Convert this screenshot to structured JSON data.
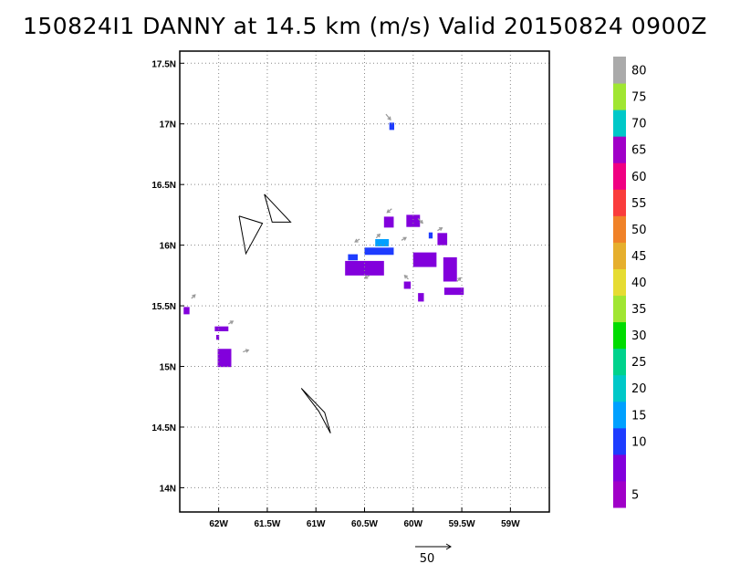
{
  "chart_data": {
    "type": "heatmap",
    "title": "150824I1 DANNY at 14.5 km (m/s) Valid 20150824 0900Z",
    "xlabel": "",
    "ylabel": "",
    "xlim": [
      -62.4,
      -58.6
    ],
    "ylim": [
      13.8,
      17.6
    ],
    "x_ticks": [
      {
        "value": -62.0,
        "label": "62W"
      },
      {
        "value": -61.5,
        "label": "61.5W"
      },
      {
        "value": -61.0,
        "label": "61W"
      },
      {
        "value": -60.5,
        "label": "60.5W"
      },
      {
        "value": -60.0,
        "label": "60W"
      },
      {
        "value": -59.5,
        "label": "59.5W"
      },
      {
        "value": -59.0,
        "label": "59W"
      }
    ],
    "y_ticks": [
      {
        "value": 14.0,
        "label": "14N"
      },
      {
        "value": 14.5,
        "label": "14.5N"
      },
      {
        "value": 15.0,
        "label": "15N"
      },
      {
        "value": 15.5,
        "label": "15.5N"
      },
      {
        "value": 16.0,
        "label": "16N"
      },
      {
        "value": 16.5,
        "label": "16.5N"
      },
      {
        "value": 17.0,
        "label": "17N"
      },
      {
        "value": 17.5,
        "label": "17.5N"
      }
    ],
    "grid": true,
    "colorbar": {
      "placement": "right",
      "levels": [
        {
          "label": "5",
          "color": "#a000c8"
        },
        {
          "label": "",
          "color": "#8200dc"
        },
        {
          "label": "10",
          "color": "#1e3cff"
        },
        {
          "label": "15",
          "color": "#00a0ff"
        },
        {
          "label": "20",
          "color": "#00c8c8"
        },
        {
          "label": "25",
          "color": "#00d28c"
        },
        {
          "label": "30",
          "color": "#00dc00"
        },
        {
          "label": "35",
          "color": "#a0e632"
        },
        {
          "label": "40",
          "color": "#e6dc32"
        },
        {
          "label": "45",
          "color": "#e6af2d"
        },
        {
          "label": "50",
          "color": "#f08228"
        },
        {
          "label": "55",
          "color": "#fa3c3c"
        },
        {
          "label": "60",
          "color": "#f00082"
        },
        {
          "label": "65",
          "color": "#a000c8"
        },
        {
          "label": "70",
          "color": "#00c8c8"
        },
        {
          "label": "75",
          "color": "#a0e632"
        },
        {
          "label": "80",
          "color": "#aaaaaa"
        }
      ]
    },
    "reference_vector": {
      "value": "50"
    },
    "coastlines": [
      [
        [
          -61.53,
          16.42
        ],
        [
          -61.26,
          16.19
        ],
        [
          -61.45,
          16.19
        ],
        [
          -61.53,
          16.42
        ]
      ],
      [
        [
          -61.79,
          16.24
        ],
        [
          -61.55,
          16.18
        ],
        [
          -61.72,
          15.93
        ],
        [
          -61.79,
          16.24
        ]
      ],
      [
        [
          -61.15,
          14.82
        ],
        [
          -60.97,
          14.63
        ],
        [
          -60.85,
          14.45
        ],
        [
          -60.91,
          14.62
        ],
        [
          -61.15,
          14.82
        ]
      ]
    ],
    "cells": [
      {
        "lon": -60.22,
        "lat": 16.98,
        "w": 0.05,
        "h": 0.06,
        "value": 10
      },
      {
        "lon": -62.33,
        "lat": 15.46,
        "w": 0.06,
        "h": 0.06,
        "value": 7
      },
      {
        "lon": -61.97,
        "lat": 15.31,
        "w": 0.14,
        "h": 0.04,
        "value": 8
      },
      {
        "lon": -62.01,
        "lat": 15.24,
        "w": 0.03,
        "h": 0.04,
        "value": 6
      },
      {
        "lon": -61.94,
        "lat": 15.07,
        "w": 0.14,
        "h": 0.15,
        "value": 7
      },
      {
        "lon": -60.25,
        "lat": 16.19,
        "w": 0.1,
        "h": 0.09,
        "value": 7
      },
      {
        "lon": -60.0,
        "lat": 16.2,
        "w": 0.14,
        "h": 0.1,
        "value": 7
      },
      {
        "lon": -60.5,
        "lat": 15.81,
        "w": 0.4,
        "h": 0.12,
        "value": 7
      },
      {
        "lon": -60.35,
        "lat": 15.95,
        "w": 0.3,
        "h": 0.06,
        "value": 11
      },
      {
        "lon": -60.32,
        "lat": 16.02,
        "w": 0.14,
        "h": 0.06,
        "value": 15
      },
      {
        "lon": -60.62,
        "lat": 15.9,
        "w": 0.1,
        "h": 0.05,
        "value": 10
      },
      {
        "lon": -59.88,
        "lat": 15.88,
        "w": 0.24,
        "h": 0.12,
        "value": 7
      },
      {
        "lon": -59.7,
        "lat": 16.05,
        "w": 0.1,
        "h": 0.1,
        "value": 7
      },
      {
        "lon": -59.62,
        "lat": 15.8,
        "w": 0.14,
        "h": 0.2,
        "value": 7
      },
      {
        "lon": -59.58,
        "lat": 15.62,
        "w": 0.2,
        "h": 0.06,
        "value": 7
      },
      {
        "lon": -59.92,
        "lat": 15.57,
        "w": 0.06,
        "h": 0.07,
        "value": 7
      },
      {
        "lon": -60.06,
        "lat": 15.67,
        "w": 0.07,
        "h": 0.06,
        "value": 7
      },
      {
        "lon": -59.82,
        "lat": 16.08,
        "w": 0.04,
        "h": 0.05,
        "value": 11
      }
    ],
    "vectors": [
      {
        "lon": -60.28,
        "lat": 17.08,
        "u": 5,
        "v": -6
      },
      {
        "lon": -62.28,
        "lat": 15.56,
        "u": 4,
        "v": 4
      },
      {
        "lon": -61.9,
        "lat": 15.35,
        "u": 5,
        "v": 3
      },
      {
        "lon": -61.75,
        "lat": 15.12,
        "u": 6,
        "v": 2
      },
      {
        "lon": -60.22,
        "lat": 16.3,
        "u": -5,
        "v": -4
      },
      {
        "lon": -59.95,
        "lat": 16.22,
        "u": 5,
        "v": -5
      },
      {
        "lon": -60.55,
        "lat": 16.05,
        "u": -5,
        "v": -3
      },
      {
        "lon": -60.38,
        "lat": 16.06,
        "u": 4,
        "v": 4
      },
      {
        "lon": -60.12,
        "lat": 16.04,
        "u": 5,
        "v": 3
      },
      {
        "lon": -60.45,
        "lat": 15.75,
        "u": -5,
        "v": -3
      },
      {
        "lon": -59.75,
        "lat": 16.12,
        "u": 5,
        "v": 3
      },
      {
        "lon": -59.55,
        "lat": 15.7,
        "u": 4,
        "v": 4
      },
      {
        "lon": -60.05,
        "lat": 15.72,
        "u": -4,
        "v": 4
      }
    ]
  }
}
